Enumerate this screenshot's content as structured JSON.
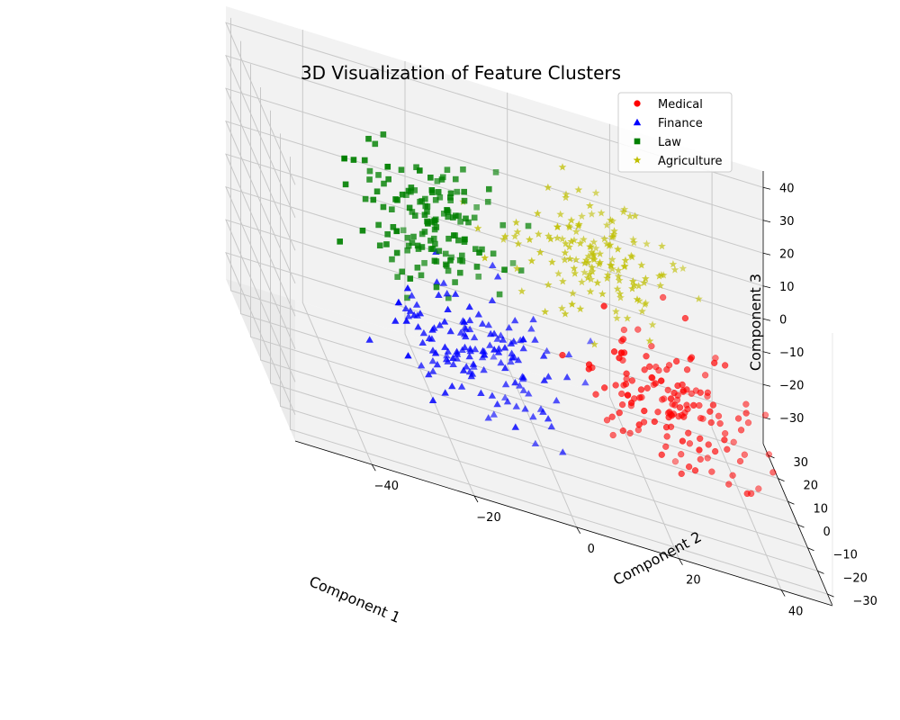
{
  "chart_data": {
    "type": "scatter",
    "dimensions": 3,
    "title": "3D Visualization of Feature Clusters",
    "xlabel": "Component 1",
    "ylabel": "Component 2",
    "zlabel": "Component 3",
    "xlim": [
      -55,
      50
    ],
    "ylim": [
      -35,
      35
    ],
    "zlim": [
      -38,
      45
    ],
    "xticks": [
      -40,
      -20,
      0,
      20,
      40
    ],
    "yticks": [
      -30,
      -20,
      -10,
      0,
      10,
      20,
      30
    ],
    "zticks": [
      -30,
      -20,
      -10,
      0,
      10,
      20,
      30,
      40
    ],
    "xtick_labels": [
      "−40",
      "−20",
      "0",
      "20",
      "40"
    ],
    "ytick_labels": [
      "−30",
      "−20",
      "−10",
      "0",
      "10",
      "20",
      "30"
    ],
    "ztick_labels": [
      "−30",
      "−20",
      "−10",
      "0",
      "10",
      "20",
      "30",
      "40"
    ],
    "grid": true,
    "legend_position": "top-right",
    "series": [
      {
        "name": "Medical",
        "color": "#ff0000",
        "marker": "circle",
        "center": [
          25,
          -5,
          -10
        ],
        "spread": [
          8,
          8,
          9
        ],
        "count": 150,
        "points": [
          [
            25,
            -5,
            -10
          ],
          [
            32,
            -2,
            -5
          ],
          [
            18,
            -10,
            -15
          ],
          [
            28,
            3,
            -8
          ],
          [
            20,
            -8,
            -2
          ],
          [
            35,
            -6,
            -18
          ],
          [
            22,
            0,
            -20
          ],
          [
            30,
            -12,
            0
          ],
          [
            16,
            -4,
            -12
          ],
          [
            27,
            -9,
            -25
          ]
        ]
      },
      {
        "name": "Finance",
        "color": "#0000ff",
        "marker": "triangle",
        "center": [
          -15,
          -5,
          -12
        ],
        "spread": [
          8,
          8,
          8
        ],
        "count": 150,
        "points": [
          [
            -15,
            -5,
            -12
          ],
          [
            -8,
            -2,
            -8
          ],
          [
            -22,
            -8,
            -18
          ],
          [
            -12,
            2,
            -5
          ],
          [
            -18,
            -12,
            -20
          ],
          [
            -5,
            -6,
            -15
          ],
          [
            -25,
            0,
            -10
          ],
          [
            -10,
            -10,
            -2
          ],
          [
            -20,
            4,
            -22
          ],
          [
            -14,
            -14,
            -6
          ]
        ]
      },
      {
        "name": "Law",
        "color": "#008000",
        "marker": "square",
        "center": [
          -20,
          12,
          12
        ],
        "spread": [
          8,
          8,
          8
        ],
        "count": 150,
        "points": [
          [
            -20,
            12,
            12
          ],
          [
            -28,
            15,
            18
          ],
          [
            -14,
            8,
            6
          ],
          [
            -24,
            18,
            22
          ],
          [
            -16,
            5,
            15
          ],
          [
            -30,
            10,
            8
          ],
          [
            -10,
            14,
            2
          ],
          [
            -22,
            20,
            10
          ],
          [
            -18,
            6,
            20
          ],
          [
            -26,
            12,
            0
          ]
        ]
      },
      {
        "name": "Agriculture",
        "color": "#bfbf00",
        "marker": "star",
        "center": [
          12,
          15,
          15
        ],
        "spread": [
          8,
          7,
          8
        ],
        "count": 150,
        "points": [
          [
            12,
            15,
            15
          ],
          [
            18,
            20,
            22
          ],
          [
            6,
            10,
            8
          ],
          [
            15,
            12,
            28
          ],
          [
            8,
            18,
            12
          ],
          [
            22,
            16,
            10
          ],
          [
            10,
            22,
            20
          ],
          [
            4,
            14,
            18
          ],
          [
            16,
            8,
            5
          ],
          [
            14,
            24,
            25
          ]
        ]
      }
    ]
  }
}
